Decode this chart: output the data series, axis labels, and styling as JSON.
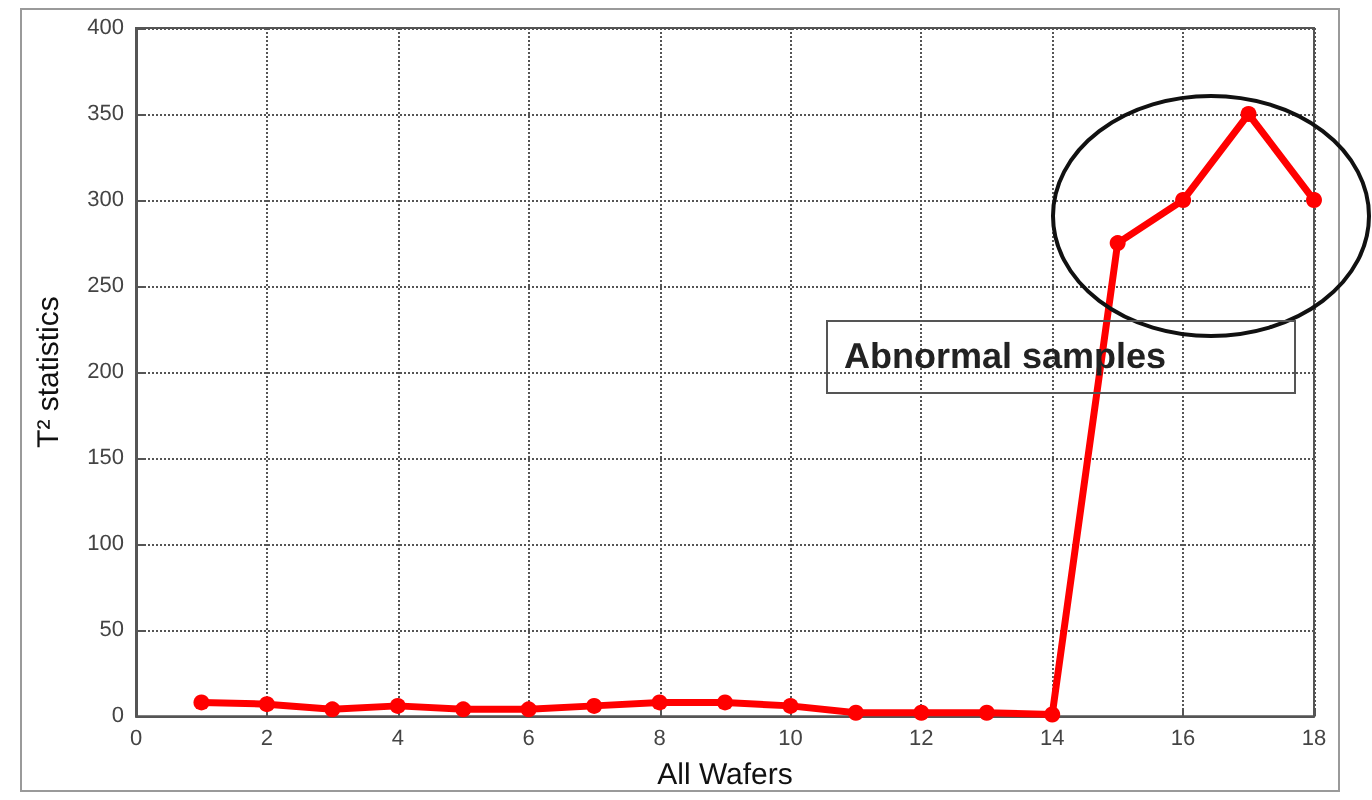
{
  "chart_data": {
    "type": "line",
    "xlabel": "All Wafers",
    "ylabel": "T² statistics",
    "x": [
      1,
      2,
      3,
      4,
      5,
      6,
      7,
      8,
      9,
      10,
      11,
      12,
      13,
      14,
      15,
      16,
      17,
      18
    ],
    "series": [
      {
        "color": "#ff0000",
        "values": [
          8,
          7,
          4,
          6,
          4,
          4,
          6,
          8,
          8,
          6,
          2,
          2,
          2,
          1,
          275,
          300,
          350,
          300
        ]
      }
    ],
    "xlim": [
      0,
      18
    ],
    "xticks": [
      0,
      2,
      4,
      6,
      8,
      10,
      12,
      14,
      16,
      18
    ],
    "ylim": [
      0,
      400
    ],
    "yticks": [
      0,
      50,
      100,
      150,
      200,
      250,
      300,
      350,
      400
    ],
    "grid": true,
    "marker": "circle",
    "line_style": "solid",
    "annotations": [
      "Abnormal samples"
    ]
  }
}
